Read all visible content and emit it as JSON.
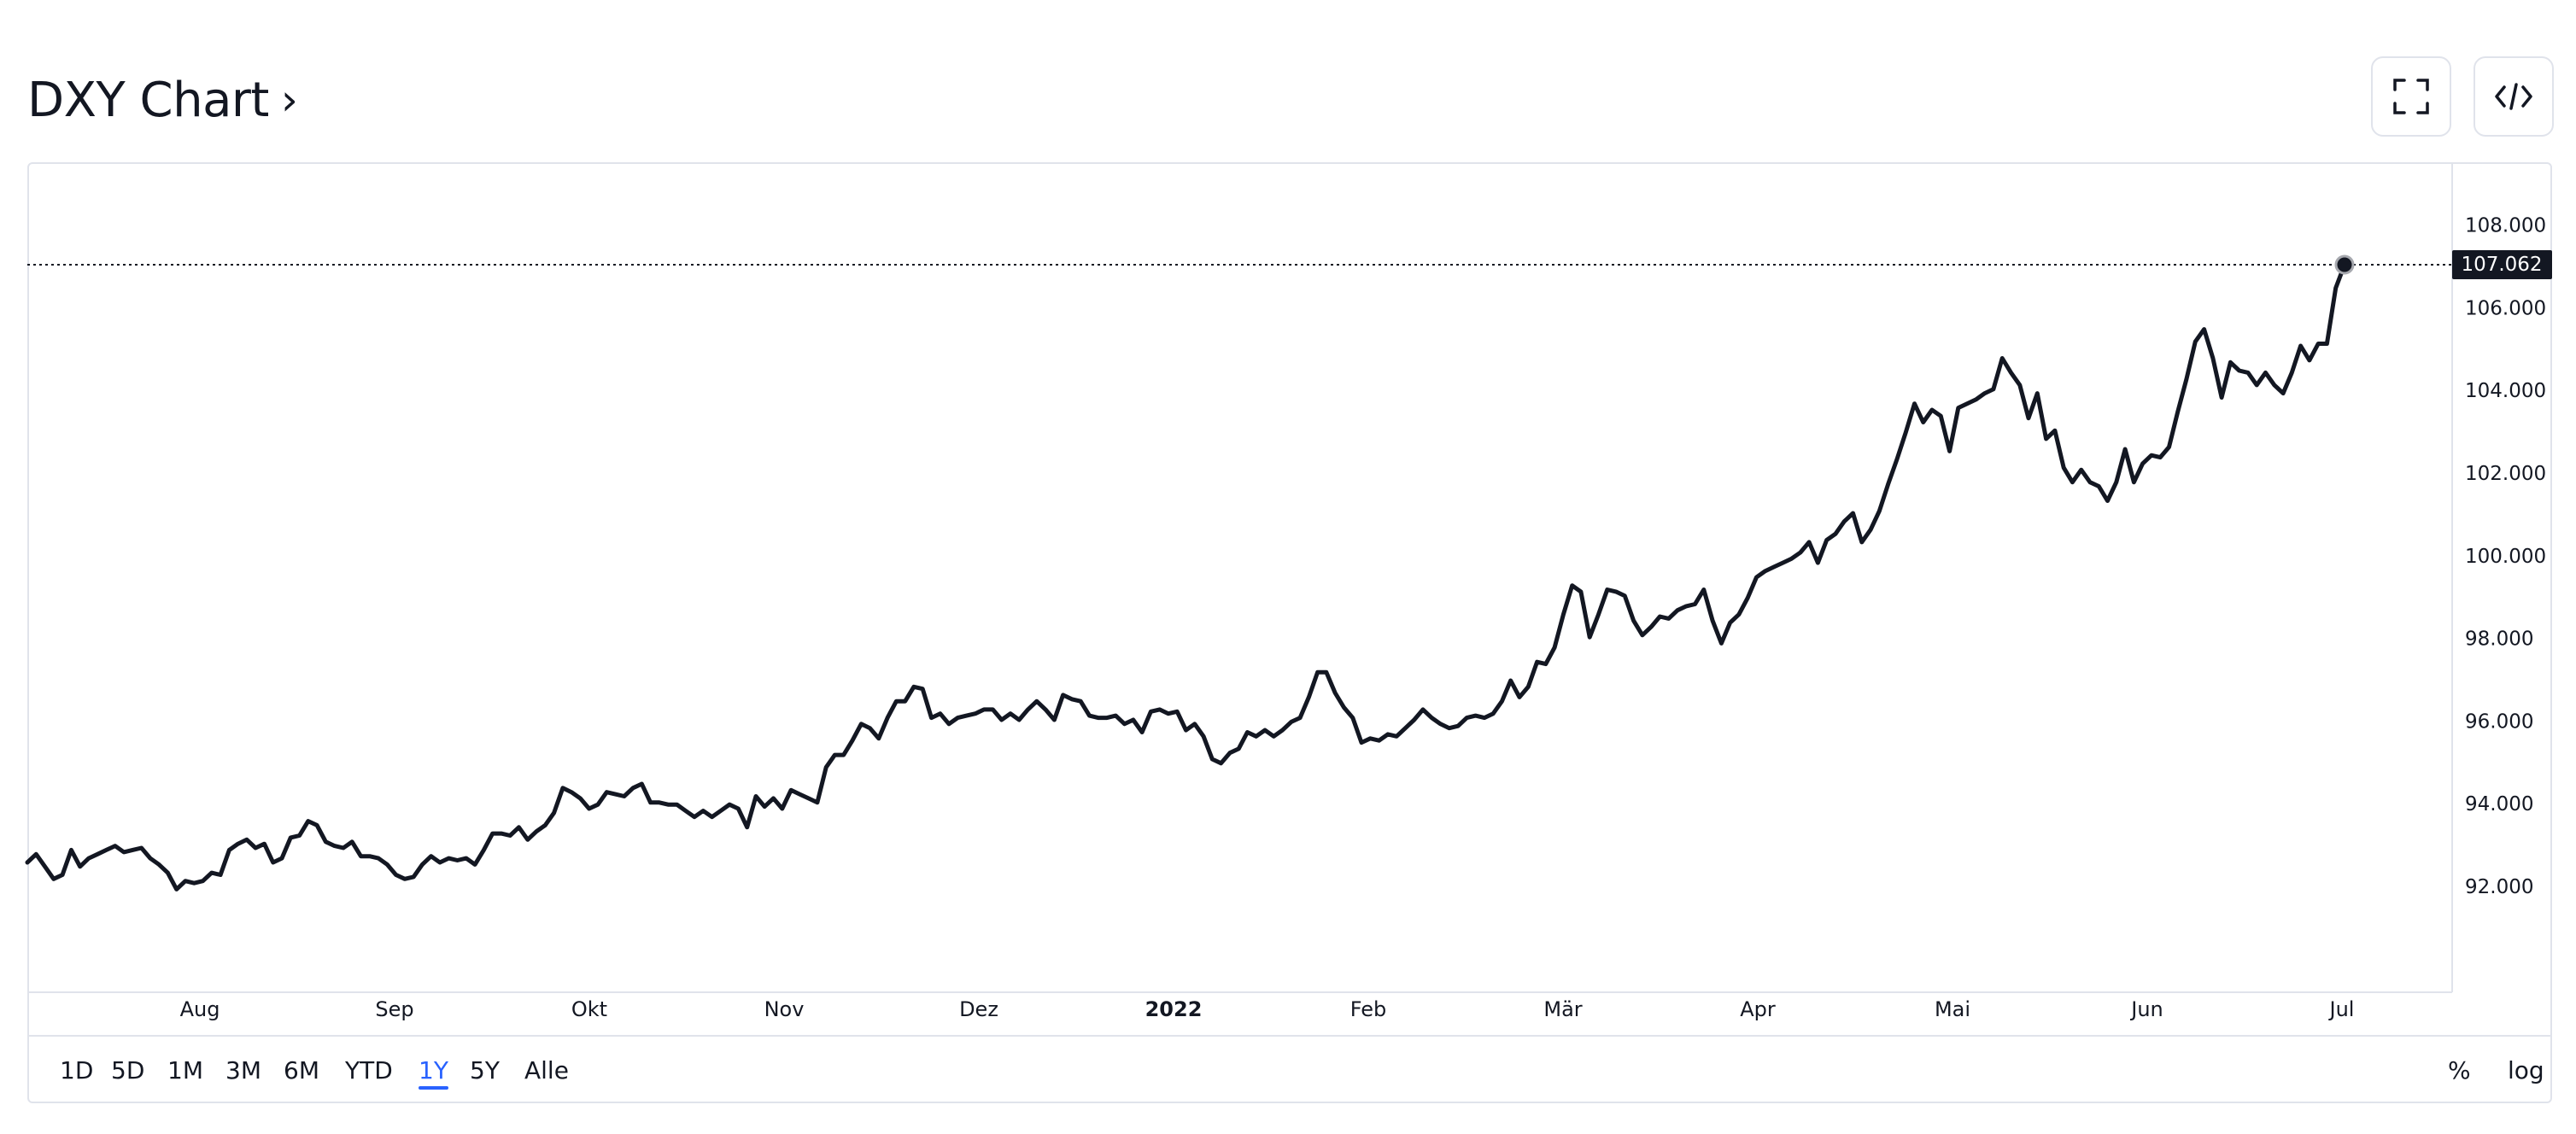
{
  "header": {
    "title": "DXY Chart",
    "chevron": "›"
  },
  "icons": {
    "fullscreen": "fullscreen-icon",
    "embed": "embed-code-icon"
  },
  "toolbar": {
    "ranges": [
      "1D",
      "5D",
      "1M",
      "3M",
      "6M",
      "YTD",
      "1Y",
      "5Y",
      "Alle"
    ],
    "active_range": "1Y",
    "percent_label": "%",
    "log_label": "log"
  },
  "colors": {
    "line": "#131722",
    "active": "#2962ff",
    "border": "#e0e3eb",
    "price_tag_bg": "#131722"
  },
  "chart_data": {
    "type": "line",
    "title": "DXY Chart",
    "series": [
      {
        "values": [
          92.6,
          92.8,
          92.5,
          92.2,
          92.3,
          92.9,
          92.5,
          92.7,
          92.8,
          92.9,
          93.0,
          92.85,
          92.9,
          92.95,
          92.7,
          92.55,
          92.35,
          91.95,
          92.15,
          92.1,
          92.15,
          92.35,
          92.3,
          92.9,
          93.05,
          93.15,
          92.95,
          93.05,
          92.6,
          92.7,
          93.2,
          93.25,
          93.6,
          93.5,
          93.1,
          93.0,
          92.95,
          93.1,
          92.75,
          92.75,
          92.7,
          92.55,
          92.3,
          92.2,
          92.25,
          92.55,
          92.75,
          92.6,
          92.7,
          92.65,
          92.7,
          92.55,
          92.9,
          93.3,
          93.3,
          93.25,
          93.45,
          93.15,
          93.35,
          93.5,
          93.8,
          94.4,
          94.3,
          94.15,
          93.9,
          94.0,
          94.3,
          94.25,
          94.2,
          94.4,
          94.5,
          94.05,
          94.05,
          94.0,
          94.0,
          93.85,
          93.7,
          93.85,
          93.7,
          93.85,
          94.0,
          93.9,
          93.45,
          94.2,
          93.95,
          94.15,
          93.9,
          94.35,
          94.25,
          94.15,
          94.05,
          94.9,
          95.2,
          95.2,
          95.55,
          95.95,
          95.85,
          95.6,
          96.1,
          96.5,
          96.5,
          96.85,
          96.8,
          96.1,
          96.2,
          95.95,
          96.1,
          96.15,
          96.2,
          96.3,
          96.3,
          96.05,
          96.2,
          96.05,
          96.3,
          96.5,
          96.3,
          96.05,
          96.65,
          96.55,
          96.5,
          96.15,
          96.1,
          96.1,
          96.15,
          95.95,
          96.05,
          95.75,
          96.25,
          96.3,
          96.2,
          96.25,
          95.8,
          95.95,
          95.65,
          95.1,
          95.0,
          95.25,
          95.35,
          95.75,
          95.65,
          95.8,
          95.65,
          95.8,
          96.0,
          96.1,
          96.6,
          97.2,
          97.2,
          96.7,
          96.35,
          96.1,
          95.5,
          95.6,
          95.55,
          95.7,
          95.65,
          95.85,
          96.05,
          96.3,
          96.1,
          95.95,
          95.85,
          95.9,
          96.1,
          96.15,
          96.1,
          96.2,
          96.5,
          97.0,
          96.6,
          96.85,
          97.45,
          97.4,
          97.8,
          98.6,
          99.3,
          99.15,
          98.05,
          98.6,
          99.2,
          99.15,
          99.05,
          98.45,
          98.1,
          98.3,
          98.55,
          98.5,
          98.7,
          98.8,
          98.85,
          99.2,
          98.45,
          97.9,
          98.4,
          98.6,
          99.0,
          99.5,
          99.65,
          99.75,
          99.85,
          99.95,
          100.1,
          100.35,
          99.85,
          100.4,
          100.55,
          100.85,
          101.05,
          100.35,
          100.65,
          101.1,
          101.75,
          102.35,
          103.0,
          103.7,
          103.25,
          103.55,
          103.4,
          102.55,
          103.6,
          103.7,
          103.8,
          103.95,
          104.05,
          104.8,
          104.45,
          104.15,
          103.35,
          103.95,
          102.85,
          103.05,
          102.15,
          101.8,
          102.1,
          101.8,
          101.7,
          101.35,
          101.8,
          102.6,
          101.8,
          102.25,
          102.45,
          102.4,
          102.65,
          103.5,
          104.3,
          105.2,
          105.5,
          104.8,
          103.85,
          104.7,
          104.5,
          104.45,
          104.15,
          104.45,
          104.15,
          103.95,
          104.45,
          105.1,
          104.75,
          105.15,
          105.15,
          106.5,
          107.062
        ]
      }
    ],
    "last_value": "107.062",
    "x_ticks": [
      "Aug",
      "Sep",
      "Okt",
      "Nov",
      "Dez",
      "2022",
      "Feb",
      "Mär",
      "Apr",
      "Mai",
      "Jun",
      "Jul"
    ],
    "x_ticks_bold": [
      "2022"
    ],
    "y_ticks": [
      "108.000",
      "106.000",
      "104.000",
      "102.000",
      "100.000",
      "98.000",
      "96.000",
      "94.000",
      "92.000"
    ],
    "ylim": [
      89.5,
      109.5
    ],
    "grid": false,
    "crosshair_at_last": true
  }
}
